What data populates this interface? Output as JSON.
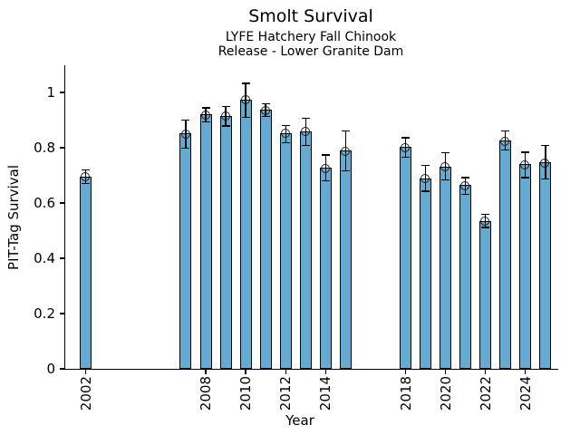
{
  "header": {
    "title": "Smolt Survival",
    "subtitle1": "LYFE Hatchery Fall Chinook",
    "subtitle2": "Release - Lower Granite Dam"
  },
  "chart_data": {
    "type": "bar",
    "title": "Smolt Survival",
    "subtitle": [
      "LYFE Hatchery Fall Chinook",
      "Release - Lower Granite Dam"
    ],
    "xlabel": "Year",
    "ylabel": "PIT-Tag Survival",
    "ylim": [
      0,
      1.1
    ],
    "xlim": [
      2001.0,
      2025.7
    ],
    "grid": false,
    "legend": "none",
    "bar_color": "#64aad3",
    "bar_edge_color": "#000000",
    "errorbar_color": "#000000",
    "marker": "open-circle",
    "x_ticks": [
      2002,
      2008,
      2010,
      2012,
      2014,
      2018,
      2020,
      2022,
      2024
    ],
    "y_ticks": [
      0,
      0.2,
      0.4,
      0.6,
      0.8,
      1
    ],
    "y_tick_labels": [
      "0",
      "0.2",
      "0.4",
      "0.6",
      "0.8",
      "1"
    ],
    "series": [
      {
        "name": "PIT-Tag Survival",
        "points": [
          {
            "year": 2002,
            "value": 0.695,
            "err_lo": 0.022,
            "err_hi": 0.022
          },
          {
            "year": 2007,
            "value": 0.852,
            "err_lo": 0.052,
            "err_hi": 0.046
          },
          {
            "year": 2008,
            "value": 0.92,
            "err_lo": 0.024,
            "err_hi": 0.022
          },
          {
            "year": 2009,
            "value": 0.915,
            "err_lo": 0.034,
            "err_hi": 0.031
          },
          {
            "year": 2010,
            "value": 0.975,
            "err_lo": 0.062,
            "err_hi": 0.055
          },
          {
            "year": 2011,
            "value": 0.937,
            "err_lo": 0.021,
            "err_hi": 0.019
          },
          {
            "year": 2012,
            "value": 0.853,
            "err_lo": 0.032,
            "err_hi": 0.026
          },
          {
            "year": 2013,
            "value": 0.86,
            "err_lo": 0.049,
            "err_hi": 0.045
          },
          {
            "year": 2014,
            "value": 0.727,
            "err_lo": 0.044,
            "err_hi": 0.044
          },
          {
            "year": 2015,
            "value": 0.789,
            "err_lo": 0.07,
            "err_hi": 0.069
          },
          {
            "year": 2018,
            "value": 0.803,
            "err_lo": 0.036,
            "err_hi": 0.031
          },
          {
            "year": 2019,
            "value": 0.689,
            "err_lo": 0.044,
            "err_hi": 0.045
          },
          {
            "year": 2020,
            "value": 0.732,
            "err_lo": 0.047,
            "err_hi": 0.047
          },
          {
            "year": 2021,
            "value": 0.664,
            "err_lo": 0.03,
            "err_hi": 0.025
          },
          {
            "year": 2022,
            "value": 0.535,
            "err_lo": 0.021,
            "err_hi": 0.021
          },
          {
            "year": 2023,
            "value": 0.825,
            "err_lo": 0.03,
            "err_hi": 0.033
          },
          {
            "year": 2024,
            "value": 0.74,
            "err_lo": 0.046,
            "err_hi": 0.042
          },
          {
            "year": 2025,
            "value": 0.747,
            "err_lo": 0.058,
            "err_hi": 0.059
          }
        ]
      }
    ]
  }
}
